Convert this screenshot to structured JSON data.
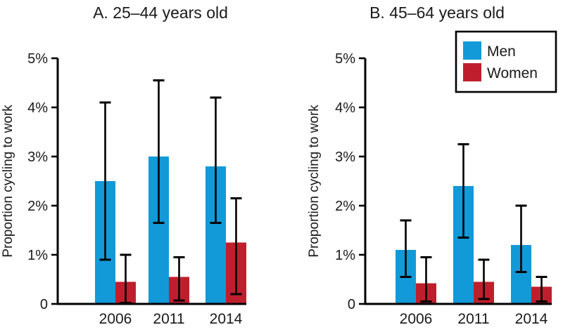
{
  "figure": {
    "background": "#ffffff",
    "text_color": "#1a1a1a",
    "axis_color": "#000000"
  },
  "colors": {
    "men": "#129ad8",
    "women": "#bf1f2c",
    "error_bar": "#000000",
    "legend_border": "#000000"
  },
  "legend": {
    "items": [
      {
        "label": "Men",
        "color_key": "men"
      },
      {
        "label": "Women",
        "color_key": "women"
      }
    ]
  },
  "chart_data": [
    {
      "type": "bar",
      "title": "A. 25–44 years old",
      "ylabel": "Proportion cycling to work",
      "xlabel": "",
      "categories": [
        "2006",
        "2011",
        "2014"
      ],
      "ylim": [
        0,
        5
      ],
      "yticks": [
        0,
        1,
        2,
        3,
        4,
        5
      ],
      "ytick_labels": [
        "0",
        "1%",
        "2%",
        "3%",
        "4%",
        "5%"
      ],
      "grid": false,
      "error_bars": true,
      "legend": false,
      "series": [
        {
          "name": "Men",
          "color": "#129ad8",
          "values": [
            2.5,
            3.0,
            2.8
          ],
          "ci_low": [
            0.9,
            1.65,
            1.65
          ],
          "ci_high": [
            4.1,
            4.55,
            4.2
          ]
        },
        {
          "name": "Women",
          "color": "#bf1f2c",
          "values": [
            0.45,
            0.55,
            1.25
          ],
          "ci_low": [
            0.02,
            0.07,
            0.2
          ],
          "ci_high": [
            1.0,
            0.95,
            2.15
          ]
        }
      ]
    },
    {
      "type": "bar",
      "title": "B. 45–64 years old",
      "ylabel": "Proportion cycling to work",
      "xlabel": "",
      "categories": [
        "2006",
        "2011",
        "2014"
      ],
      "ylim": [
        0,
        5
      ],
      "yticks": [
        0,
        1,
        2,
        3,
        4,
        5
      ],
      "ytick_labels": [
        "0",
        "1%",
        "2%",
        "3%",
        "4%",
        "5%"
      ],
      "grid": false,
      "error_bars": true,
      "legend": true,
      "legend_position": "top-right",
      "series": [
        {
          "name": "Men",
          "color": "#129ad8",
          "values": [
            1.1,
            2.4,
            1.2
          ],
          "ci_low": [
            0.55,
            1.35,
            0.65
          ],
          "ci_high": [
            1.7,
            3.25,
            2.0
          ]
        },
        {
          "name": "Women",
          "color": "#bf1f2c",
          "values": [
            0.42,
            0.45,
            0.35
          ],
          "ci_low": [
            0.05,
            0.1,
            0.05
          ],
          "ci_high": [
            0.95,
            0.9,
            0.55
          ]
        }
      ]
    }
  ]
}
